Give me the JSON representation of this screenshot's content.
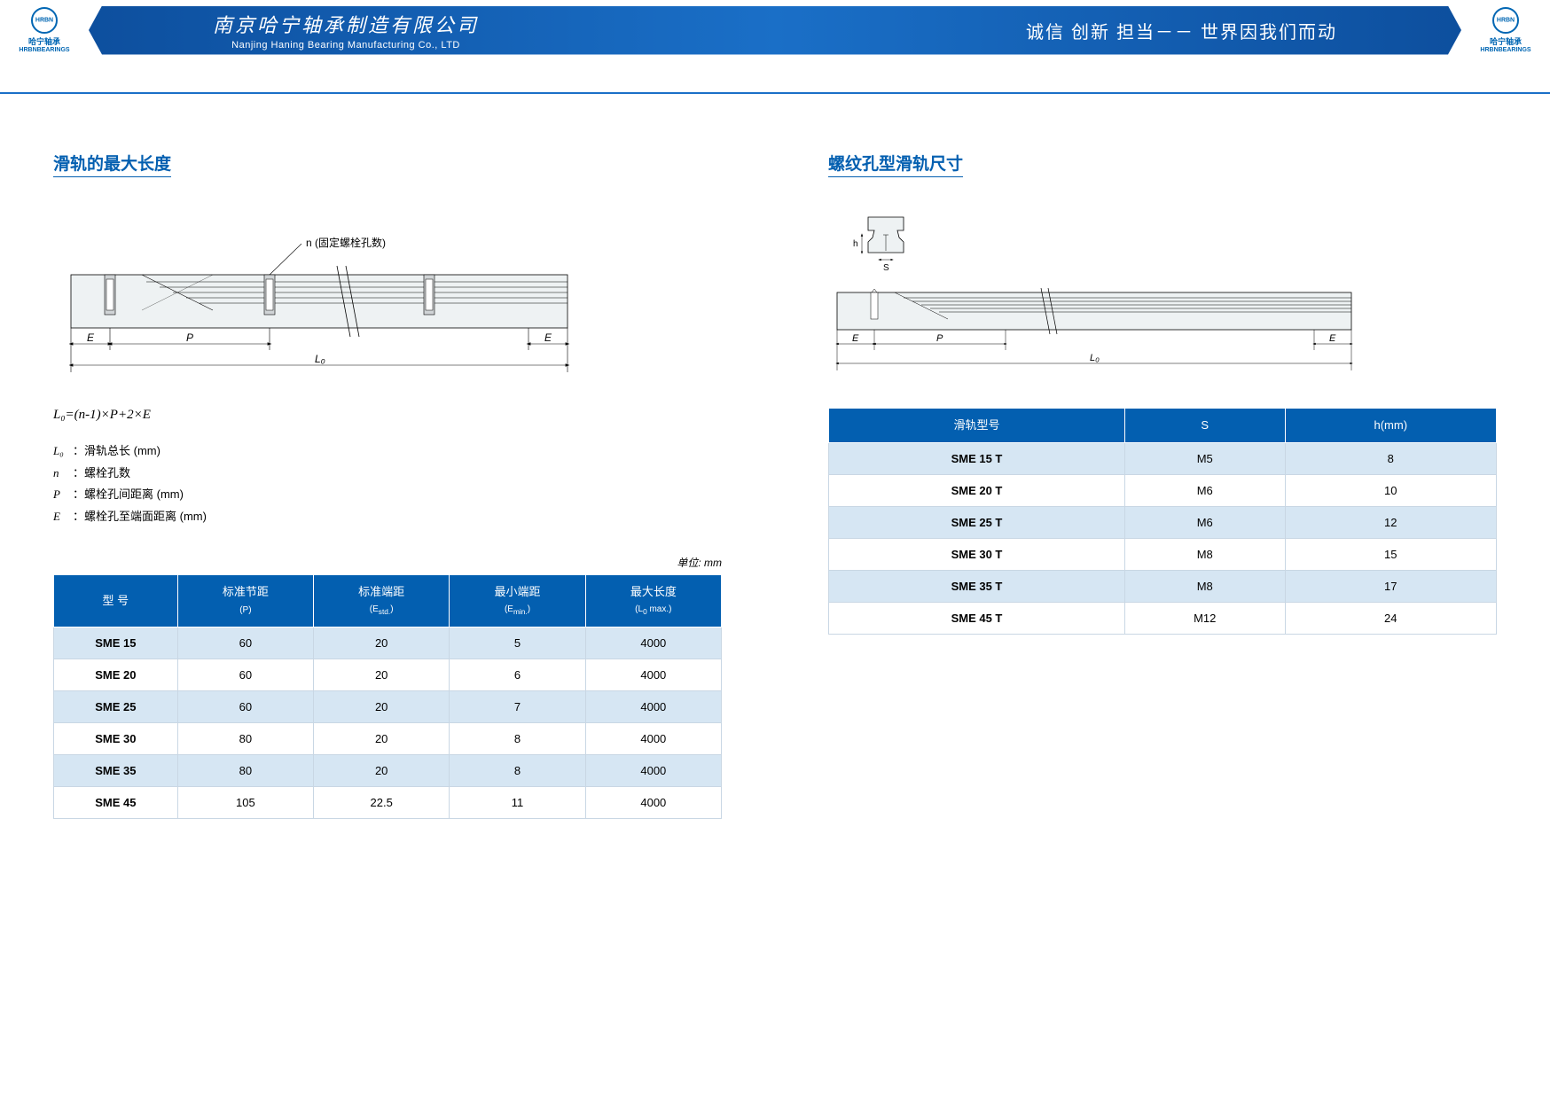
{
  "header": {
    "logo_cn": "哈宁轴承",
    "logo_en": "HRBNBEARINGS",
    "company_cn": "南京哈宁轴承制造有限公司",
    "company_en": "Nanjing Haning Bearing Manufacturing Co., LTD",
    "slogan": "诚信  创新  担当－－ 世界因我们而动"
  },
  "colors": {
    "brand_blue": "#035fb0",
    "header_blue": "#0d4f9e",
    "row_alt": "#d6e6f3",
    "border": "#c9d7e4",
    "line_black": "#000000"
  },
  "left": {
    "title": "滑轨的最大长度",
    "diagram": {
      "n_label": "n (固定螺栓孔数)",
      "dims": {
        "E": "E",
        "P": "P",
        "L0": "L₀"
      }
    },
    "formula": "L₀=(n-1)×P+2×E",
    "defs": [
      {
        "sym": "L₀",
        "text": "：滑轨总长 (mm)"
      },
      {
        "sym": "n",
        "text": "：螺栓孔数"
      },
      {
        "sym": "P",
        "text": "：螺栓孔间距离 (mm)"
      },
      {
        "sym": "E",
        "text": "：螺栓孔至端面距离 (mm)"
      }
    ],
    "unit_label": "单位: mm",
    "table": {
      "headers": [
        "型 号",
        "标准节距\n(P)",
        "标准端距\n(Estd.)",
        "最小端距\n(Emin.)",
        "最大长度\n(L₀ max.)"
      ],
      "rows": [
        [
          "SME 15",
          "60",
          "20",
          "5",
          "4000"
        ],
        [
          "SME 20",
          "60",
          "20",
          "6",
          "4000"
        ],
        [
          "SME 25",
          "60",
          "20",
          "7",
          "4000"
        ],
        [
          "SME 30",
          "80",
          "20",
          "8",
          "4000"
        ],
        [
          "SME 35",
          "80",
          "20",
          "8",
          "4000"
        ],
        [
          "SME  45",
          "105",
          "22.5",
          "11",
          "4000"
        ]
      ]
    }
  },
  "right": {
    "title": "螺纹孔型滑轨尺寸",
    "diagram": {
      "h_label": "h",
      "s_label": "S",
      "dims": {
        "E": "E",
        "P": "P",
        "L0": "L₀"
      }
    },
    "table": {
      "headers": [
        "滑轨型号",
        "S",
        "h(mm)"
      ],
      "rows": [
        [
          "SME 15 T",
          "M5",
          "8"
        ],
        [
          "SME 20 T",
          "M6",
          "10"
        ],
        [
          "SME 25 T",
          "M6",
          "12"
        ],
        [
          "SME 30 T",
          "M8",
          "15"
        ],
        [
          "SME 35 T",
          "M8",
          "17"
        ],
        [
          "SME 45 T",
          "M12",
          "24"
        ]
      ]
    }
  }
}
